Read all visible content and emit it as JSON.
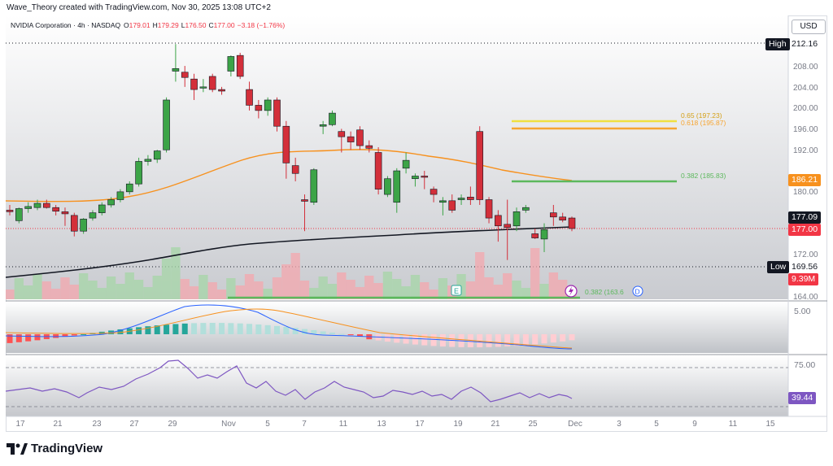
{
  "header": {
    "credit": "Wave_Theory created with TradingView.com, Nov 30, 2025 13:08 UTC+2"
  },
  "legend": {
    "symbol": "NVIDIA Corporation · 4h · NASDAQ",
    "o_label": "O",
    "o_value": "179.01",
    "h_label": "H",
    "h_value": "179.29",
    "l_label": "L",
    "l_value": "176.50",
    "c_label": "C",
    "c_value": "177.00",
    "change": "−3.18 (−1.76%)"
  },
  "currency": "USD",
  "price_axis": {
    "ticks": [
      "208.00",
      "204.00",
      "200.00",
      "196.00",
      "192.00",
      "180.00",
      "172.00",
      "164.00"
    ],
    "high_label": "High",
    "high_value": "212.16",
    "low_label": "Low",
    "low_value": "169.56",
    "fib_0382_box": "186.21",
    "current_black": "177.09",
    "current_red": "177.00",
    "volume_box": "9.39M"
  },
  "fib_levels": [
    {
      "label": "0.65 (197.23)",
      "color": "#f0e040"
    },
    {
      "label": "0.618 (195.87)",
      "color": "#f7a531"
    },
    {
      "label": "0.382 (185.83)",
      "color": "#5cb85c"
    },
    {
      "label": "0.382 (163.6",
      "color": "#5cb85c"
    }
  ],
  "markers": {
    "earnings": "E",
    "dividend": "D"
  },
  "macd_axis": {
    "tick": "5.00"
  },
  "rsi_axis": {
    "tick": "75.00",
    "value": "39.44"
  },
  "time_axis": {
    "labels": [
      "17",
      "21",
      "23",
      "27",
      "29",
      "Nov",
      "5",
      "7",
      "11",
      "13",
      "17",
      "19",
      "21",
      "25",
      "Dec",
      "3",
      "5",
      "9",
      "11",
      "15"
    ]
  },
  "footer": {
    "brand": "TradingView"
  },
  "chart_data": {
    "type": "candlestick",
    "title": "NVIDIA Corporation · 4h · NASDAQ",
    "ylim": [
      164,
      214
    ],
    "candles": [
      {
        "o": 180.5,
        "h": 181.5,
        "l": 179.5,
        "c": 180.2
      },
      {
        "o": 178.5,
        "h": 181,
        "l": 178,
        "c": 180.8
      },
      {
        "o": 180.8,
        "h": 182,
        "l": 180,
        "c": 181.2
      },
      {
        "o": 181,
        "h": 182.5,
        "l": 180.5,
        "c": 181.8
      },
      {
        "o": 181.8,
        "h": 182.5,
        "l": 180.8,
        "c": 181
      },
      {
        "o": 181,
        "h": 181.5,
        "l": 179.5,
        "c": 180.3
      },
      {
        "o": 180.2,
        "h": 181,
        "l": 177.5,
        "c": 179.8
      },
      {
        "o": 179.5,
        "h": 180,
        "l": 175.5,
        "c": 176.5
      },
      {
        "o": 176.5,
        "h": 179,
        "l": 176,
        "c": 178.8
      },
      {
        "o": 179,
        "h": 180.5,
        "l": 178.5,
        "c": 180
      },
      {
        "o": 180,
        "h": 182,
        "l": 179.5,
        "c": 181.5
      },
      {
        "o": 181.5,
        "h": 183,
        "l": 181,
        "c": 182.5
      },
      {
        "o": 182.5,
        "h": 184.5,
        "l": 182,
        "c": 184
      },
      {
        "o": 184,
        "h": 186,
        "l": 183.5,
        "c": 185.5
      },
      {
        "o": 185.5,
        "h": 190.5,
        "l": 185,
        "c": 189.8
      },
      {
        "o": 189.8,
        "h": 191,
        "l": 189,
        "c": 190.2
      },
      {
        "o": 190.2,
        "h": 192,
        "l": 189.5,
        "c": 191.8
      },
      {
        "o": 192,
        "h": 202,
        "l": 191.5,
        "c": 201.5
      },
      {
        "o": 207,
        "h": 212.16,
        "l": 205,
        "c": 207.5
      },
      {
        "o": 206.8,
        "h": 208,
        "l": 204,
        "c": 205.8
      },
      {
        "o": 205.5,
        "h": 206.5,
        "l": 201.5,
        "c": 203.5
      },
      {
        "o": 203.8,
        "h": 205.5,
        "l": 203,
        "c": 204
      },
      {
        "o": 206,
        "h": 206.5,
        "l": 203,
        "c": 203.5
      },
      {
        "o": 203.5,
        "h": 204,
        "l": 202.5,
        "c": 203.2
      },
      {
        "o": 207,
        "h": 210,
        "l": 206,
        "c": 209.8
      },
      {
        "o": 210,
        "h": 210.5,
        "l": 205.5,
        "c": 206
      },
      {
        "o": 203.5,
        "h": 205,
        "l": 199.5,
        "c": 200.5
      },
      {
        "o": 200.5,
        "h": 201.5,
        "l": 198,
        "c": 199.5
      },
      {
        "o": 199.5,
        "h": 202,
        "l": 198.5,
        "c": 201.5
      },
      {
        "o": 201.5,
        "h": 202,
        "l": 195.5,
        "c": 196.5
      },
      {
        "o": 196.5,
        "h": 197.5,
        "l": 186.5,
        "c": 189.5
      },
      {
        "o": 189,
        "h": 190.5,
        "l": 186,
        "c": 187.5
      },
      {
        "o": 182.5,
        "h": 183.5,
        "l": 176.5,
        "c": 182.2
      },
      {
        "o": 182,
        "h": 188.5,
        "l": 181.5,
        "c": 188.2
      },
      {
        "o": 196.5,
        "h": 197.5,
        "l": 195,
        "c": 196.8
      },
      {
        "o": 196.8,
        "h": 199.5,
        "l": 196.5,
        "c": 199
      },
      {
        "o": 195.5,
        "h": 196,
        "l": 191.5,
        "c": 194.5
      },
      {
        "o": 194.5,
        "h": 195.5,
        "l": 192,
        "c": 193.5
      },
      {
        "o": 195.8,
        "h": 196.5,
        "l": 192,
        "c": 192.8
      },
      {
        "o": 192.8,
        "h": 193.8,
        "l": 191.5,
        "c": 192.3
      },
      {
        "o": 191.5,
        "h": 192.5,
        "l": 183.5,
        "c": 184.5
      },
      {
        "o": 183.5,
        "h": 187,
        "l": 183,
        "c": 186.5
      },
      {
        "o": 182,
        "h": 188.5,
        "l": 180,
        "c": 188
      },
      {
        "o": 188.5,
        "h": 191.5,
        "l": 187.5,
        "c": 190
      },
      {
        "o": 186.5,
        "h": 187.5,
        "l": 185,
        "c": 187
      },
      {
        "o": 187,
        "h": 188,
        "l": 184.5,
        "c": 186.8
      },
      {
        "o": 184.5,
        "h": 185,
        "l": 182,
        "c": 183.5
      },
      {
        "o": 182,
        "h": 183,
        "l": 179.5,
        "c": 182.3
      },
      {
        "o": 182.3,
        "h": 183.5,
        "l": 180,
        "c": 180.5
      },
      {
        "o": 182.5,
        "h": 183.5,
        "l": 181.5,
        "c": 182.8
      },
      {
        "o": 183,
        "h": 185,
        "l": 181.5,
        "c": 182.5
      },
      {
        "o": 195.5,
        "h": 196.5,
        "l": 181.5,
        "c": 182.5
      },
      {
        "o": 182.5,
        "h": 183,
        "l": 178,
        "c": 179
      },
      {
        "o": 179.5,
        "h": 180.5,
        "l": 174.5,
        "c": 177.5
      },
      {
        "o": 177.8,
        "h": 182.5,
        "l": 171,
        "c": 177.2
      },
      {
        "o": 177.5,
        "h": 181,
        "l": 176.5,
        "c": 180.2
      },
      {
        "o": 180.5,
        "h": 181.5,
        "l": 180,
        "c": 181
      },
      {
        "o": 176,
        "h": 177,
        "l": 175,
        "c": 175.2
      },
      {
        "o": 175,
        "h": 178,
        "l": 172.5,
        "c": 176.8
      },
      {
        "o": 180,
        "h": 181.5,
        "l": 177.5,
        "c": 179.2
      },
      {
        "o": 179.2,
        "h": 180,
        "l": 178.2,
        "c": 178.6
      },
      {
        "o": 179.01,
        "h": 179.29,
        "l": 176.5,
        "c": 177.0
      }
    ]
  }
}
